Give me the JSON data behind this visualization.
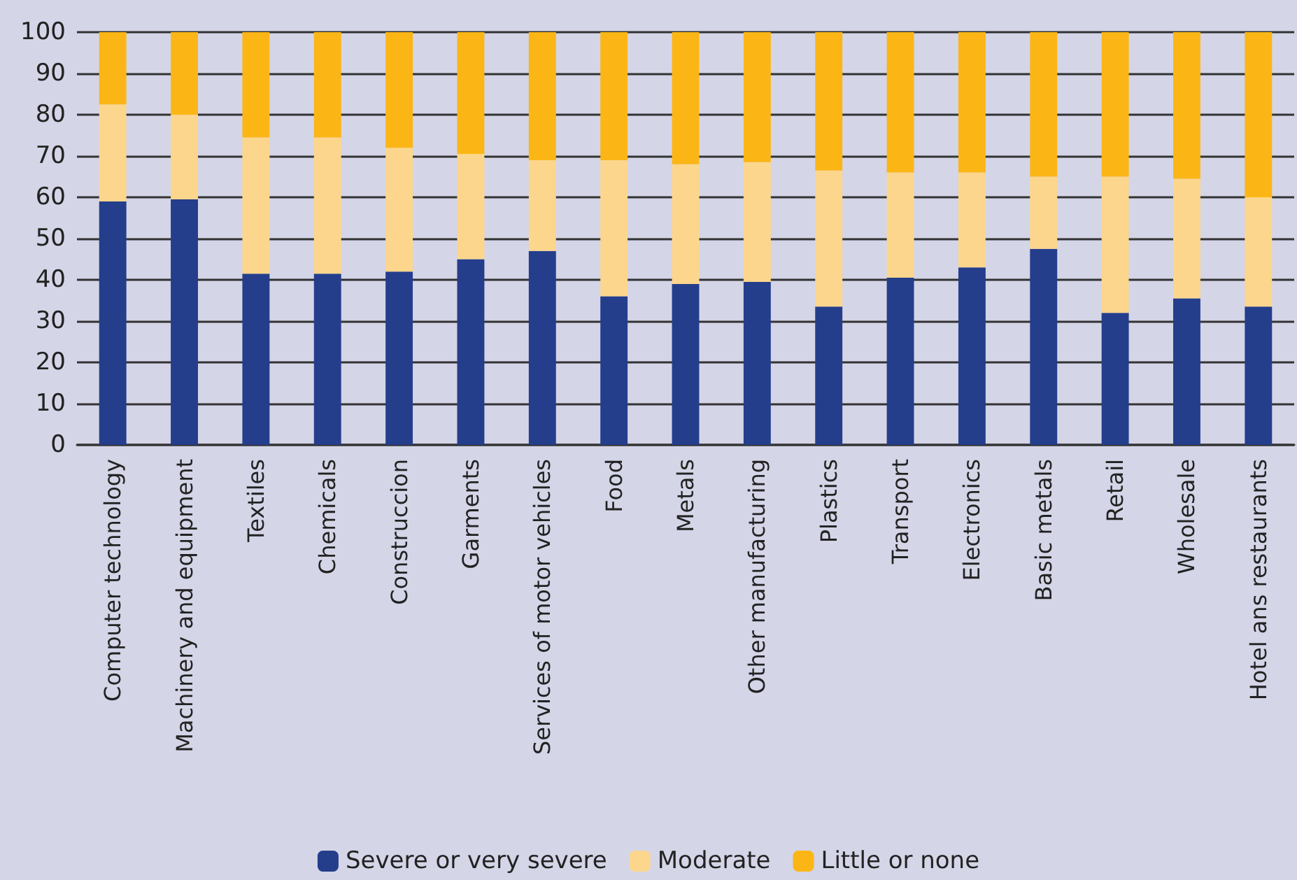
{
  "chart_data": {
    "type": "bar",
    "stacked": true,
    "categories": [
      "Computer technology",
      "Machinery and equipment",
      "Textiles",
      "Chemicals",
      "Construccion",
      "Garments",
      "Services of motor vehicles",
      "Food",
      "Metals",
      "Other manufacturing",
      "Plastics",
      "Transport",
      "Electronics",
      "Basic metals",
      "Retail",
      "Wholesale",
      "Hotel ans restaurants"
    ],
    "series": [
      {
        "name": "Severe or very severe",
        "color": "#243e8c",
        "values": [
          59,
          59.5,
          41.5,
          41.5,
          42,
          45,
          47,
          36,
          39,
          39.5,
          33.5,
          40.5,
          43,
          47.5,
          32,
          35.5,
          33.5
        ]
      },
      {
        "name": "Moderate",
        "color": "#fcd68c",
        "values": [
          23.5,
          20.5,
          33,
          33,
          30,
          25.5,
          22,
          33,
          29,
          29,
          33,
          25.5,
          23,
          17.5,
          33,
          29,
          26.5
        ]
      },
      {
        "name": "Little or none",
        "color": "#fbb616",
        "values": [
          17.5,
          20,
          25.5,
          25.5,
          28,
          29.5,
          31,
          31,
          32,
          31.5,
          33.5,
          34,
          34,
          35,
          35,
          35.5,
          40
        ]
      }
    ],
    "ylim": [
      0,
      100
    ],
    "yticks": [
      0,
      10,
      20,
      30,
      40,
      50,
      60,
      70,
      80,
      90,
      100
    ],
    "grid": "y",
    "legend": "bottom"
  }
}
